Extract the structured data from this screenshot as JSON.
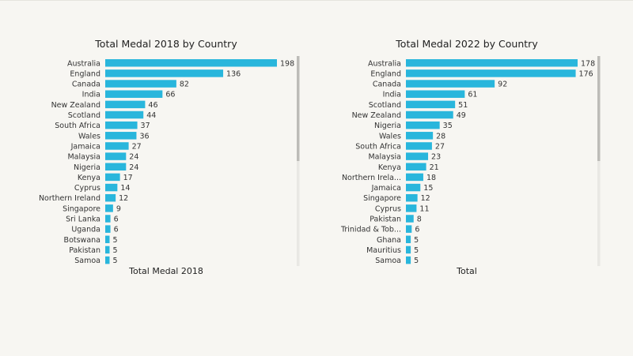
{
  "colors": {
    "bar": "#29b6dc",
    "background": "#f7f6f2",
    "scroll_track": "#e9e8e4",
    "scroll_thumb": "#bdbcb8"
  },
  "chart_data": [
    {
      "type": "bar",
      "orientation": "horizontal",
      "title": "Total Medal 2018 by Country",
      "xlabel": "Total Medal 2018",
      "categories": [
        "Australia",
        "England",
        "Canada",
        "India",
        "New Zealand",
        "Scotland",
        "South Africa",
        "Wales",
        "Jamaica",
        "Malaysia",
        "Nigeria",
        "Kenya",
        "Cyprus",
        "Northern Ireland",
        "Singapore",
        "Sri Lanka",
        "Uganda",
        "Botswana",
        "Pakistan",
        "Samoa"
      ],
      "values": [
        198,
        136,
        82,
        66,
        46,
        44,
        37,
        36,
        27,
        24,
        24,
        17,
        14,
        12,
        9,
        6,
        6,
        5,
        5,
        5
      ],
      "value_labels": [
        "198",
        "136",
        "82",
        "66",
        "46",
        "44",
        "37",
        "36",
        "27",
        "24",
        "24",
        "17",
        "14",
        "12",
        "9",
        "6",
        "6",
        "5",
        "5",
        "5"
      ],
      "xlim": [
        0,
        198
      ],
      "grid": false,
      "scrollbar_thumb": [
        0,
        0.5
      ]
    },
    {
      "type": "bar",
      "orientation": "horizontal",
      "title": "Total Medal 2022 by Country",
      "xlabel": "Total",
      "categories": [
        "Australia",
        "England",
        "Canada",
        "India",
        "Scotland",
        "New Zealand",
        "Nigeria",
        "Wales",
        "South Africa",
        "Malaysia",
        "Kenya",
        "Northern Irela...",
        "Jamaica",
        "Singapore",
        "Cyprus",
        "Pakistan",
        "Trinidad & Tob...",
        "Ghana",
        "Mauritius",
        "Samoa"
      ],
      "values": [
        178,
        176,
        92,
        61,
        51,
        49,
        35,
        28,
        27,
        23,
        21,
        18,
        15,
        12,
        11,
        8,
        6,
        5,
        5,
        5
      ],
      "value_labels": [
        "178",
        "176",
        "92",
        "61",
        "51",
        "49",
        "35",
        "28",
        "27",
        "23",
        "21",
        "18",
        "15",
        "12",
        "11",
        "8",
        "6",
        "5",
        "5",
        "5"
      ],
      "xlim": [
        0,
        178
      ],
      "grid": false,
      "scrollbar_thumb": [
        0,
        0.5
      ]
    }
  ]
}
